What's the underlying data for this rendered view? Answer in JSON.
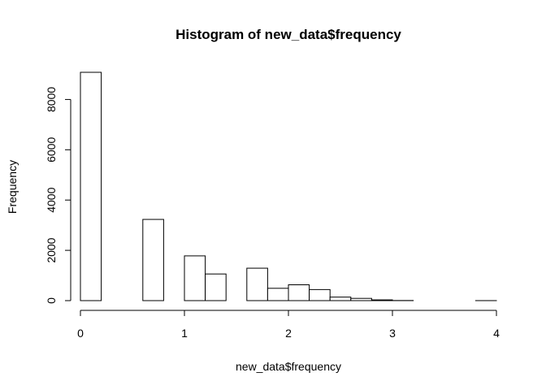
{
  "chart_data": {
    "type": "bar",
    "title": "Histogram of new_data$frequency",
    "xlabel": "new_data$frequency",
    "ylabel": "Frequency",
    "bin_width": 0.2,
    "bins": [
      {
        "x0": 0.0,
        "x1": 0.2,
        "count": 9080
      },
      {
        "x0": 0.2,
        "x1": 0.4,
        "count": 0
      },
      {
        "x0": 0.4,
        "x1": 0.6,
        "count": 0
      },
      {
        "x0": 0.6,
        "x1": 0.8,
        "count": 3230
      },
      {
        "x0": 0.8,
        "x1": 1.0,
        "count": 0
      },
      {
        "x0": 1.0,
        "x1": 1.2,
        "count": 1780
      },
      {
        "x0": 1.2,
        "x1": 1.4,
        "count": 1060
      },
      {
        "x0": 1.4,
        "x1": 1.6,
        "count": 0
      },
      {
        "x0": 1.6,
        "x1": 1.8,
        "count": 1290
      },
      {
        "x0": 1.8,
        "x1": 2.0,
        "count": 490
      },
      {
        "x0": 2.0,
        "x1": 2.2,
        "count": 630
      },
      {
        "x0": 2.2,
        "x1": 2.4,
        "count": 440
      },
      {
        "x0": 2.4,
        "x1": 2.6,
        "count": 140
      },
      {
        "x0": 2.6,
        "x1": 2.8,
        "count": 90
      },
      {
        "x0": 2.8,
        "x1": 3.0,
        "count": 30
      },
      {
        "x0": 3.0,
        "x1": 3.2,
        "count": 5
      },
      {
        "x0": 3.2,
        "x1": 3.4,
        "count": 0
      },
      {
        "x0": 3.4,
        "x1": 3.6,
        "count": 0
      },
      {
        "x0": 3.6,
        "x1": 3.8,
        "count": 0
      },
      {
        "x0": 3.8,
        "x1": 4.0,
        "count": 1
      }
    ],
    "xlim": [
      0,
      4
    ],
    "ylim": [
      0,
      9080
    ],
    "x_ticks": [
      "0",
      "1",
      "2",
      "3",
      "4"
    ],
    "y_ticks": [
      "0",
      "2000",
      "4000",
      "6000",
      "8000"
    ],
    "grid": false,
    "legend": "none",
    "colors": {
      "bar_fill": "#ffffff",
      "bar_stroke": "#000000"
    }
  }
}
